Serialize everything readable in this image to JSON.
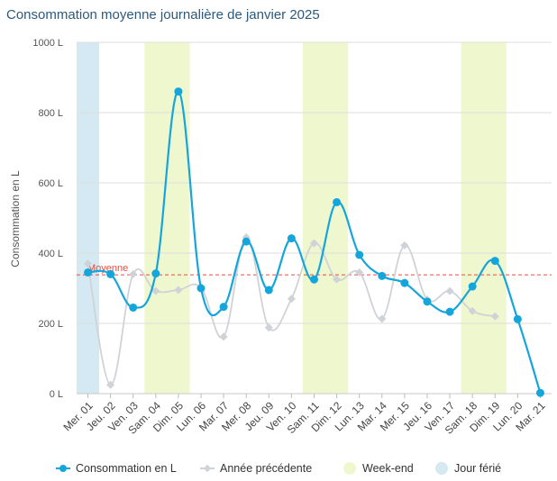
{
  "chart_data": {
    "type": "line",
    "title": "Consommation moyenne journalière de janvier 2025",
    "xlabel": "",
    "ylabel": "Consommation en L",
    "ylim": [
      0,
      1000
    ],
    "yticks": [
      0,
      200,
      400,
      600,
      800,
      1000
    ],
    "ytick_labels": [
      "0 L",
      "200 L",
      "400 L",
      "600 L",
      "800 L",
      "1000 L"
    ],
    "grid": true,
    "legend_position": "bottom",
    "categories": [
      "Mer. 01",
      "Jeu. 02",
      "Ven. 03",
      "Sam. 04",
      "Dim. 05",
      "Lun. 06",
      "Mar. 07",
      "Mer. 08",
      "Jeu. 09",
      "Ven. 10",
      "Sam. 11",
      "Dim. 12",
      "Lun. 13",
      "Mar. 14",
      "Mer. 15",
      "Jeu. 16",
      "Ven. 17",
      "Sam. 18",
      "Dim. 19",
      "Lun. 20",
      "Mar. 21"
    ],
    "series": [
      {
        "name": "Consommation en L",
        "color": "#14a6db",
        "values": [
          345,
          340,
          245,
          342,
          860,
          300,
          247,
          433,
          295,
          442,
          325,
          545,
          395,
          335,
          315,
          262,
          233,
          305,
          378,
          212,
          2
        ]
      },
      {
        "name": "Année précédente",
        "color": "#cfd3d8",
        "values": [
          370,
          25,
          340,
          292,
          295,
          302,
          162,
          445,
          188,
          270,
          428,
          325,
          345,
          213,
          422,
          268,
          292,
          235,
          220,
          null,
          null
        ]
      }
    ],
    "reference_line": {
      "label": "Moyenne",
      "value": 338,
      "color": "#e74c3c"
    },
    "bands": [
      {
        "name": "Jour férié",
        "color": "#d4e9f2",
        "categories": [
          0
        ]
      },
      {
        "name": "Week-end",
        "color": "#eff7cf",
        "categories": [
          3,
          4
        ]
      },
      {
        "name": "Week-end",
        "color": "#eff7cf",
        "categories": [
          10,
          11
        ]
      },
      {
        "name": "Week-end",
        "color": "#eff7cf",
        "categories": [
          17,
          18
        ]
      }
    ],
    "legend": [
      {
        "label": "Consommation en L",
        "kind": "line-marker",
        "color": "#14a6db"
      },
      {
        "label": "Année précédente",
        "kind": "line-marker",
        "color": "#cfd3d8"
      },
      {
        "label": "Week-end",
        "kind": "circle",
        "color": "#eff7cf"
      },
      {
        "label": "Jour férié",
        "kind": "circle",
        "color": "#d4e9f2"
      }
    ]
  }
}
